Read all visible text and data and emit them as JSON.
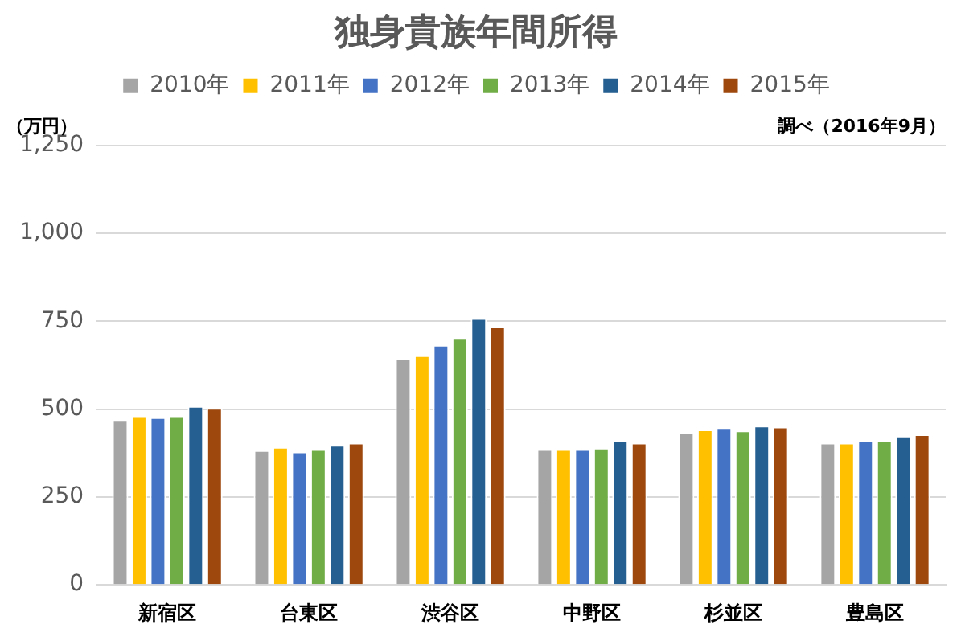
{
  "chart_data": {
    "type": "bar",
    "title": "独身貴族年間所得",
    "ylabel": "（万円）",
    "annotations": [
      "調べ（2016年9月）"
    ],
    "categories": [
      "新宿区",
      "台東区",
      "渋谷区",
      "中野区",
      "杉並区",
      "豊島区"
    ],
    "series": [
      {
        "name": "2010年",
        "color": "#a5a5a5",
        "values": [
          469,
          383,
          645,
          386,
          434,
          404
        ]
      },
      {
        "name": "2011年",
        "color": "#ffc000",
        "values": [
          480,
          392,
          653,
          386,
          442,
          404
        ]
      },
      {
        "name": "2012年",
        "color": "#4472c4",
        "values": [
          477,
          379,
          683,
          386,
          446,
          411
        ]
      },
      {
        "name": "2013年",
        "color": "#70ad47",
        "values": [
          480,
          386,
          702,
          390,
          439,
          411
        ]
      },
      {
        "name": "2014年",
        "color": "#255e91",
        "values": [
          509,
          398,
          759,
          412,
          453,
          424
        ]
      },
      {
        "name": "2015年",
        "color": "#9e480e",
        "values": [
          503,
          404,
          735,
          404,
          450,
          428
        ]
      }
    ],
    "ylim": [
      0,
      1250
    ],
    "yticks": [
      {
        "value": 0,
        "label": "0"
      },
      {
        "value": 250,
        "label": "250"
      },
      {
        "value": 500,
        "label": "500"
      },
      {
        "value": 750,
        "label": "750"
      },
      {
        "value": 1000,
        "label": "1,000"
      },
      {
        "value": 1250,
        "label": "1,250"
      }
    ],
    "grid": "y",
    "legend": "top"
  }
}
